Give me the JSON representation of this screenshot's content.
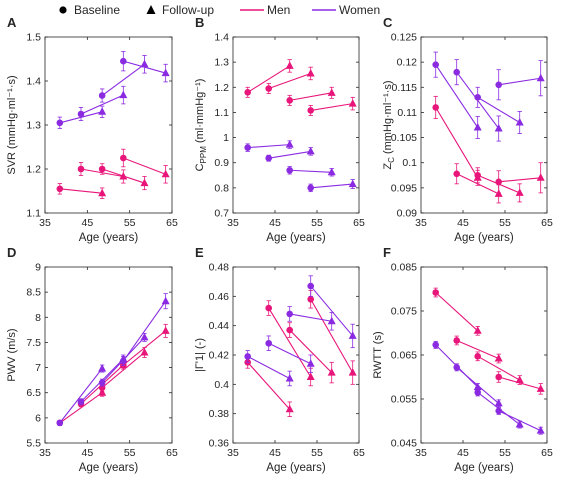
{
  "legend": {
    "items": [
      {
        "label": "Baseline",
        "marker": "circle",
        "color": "#000000"
      },
      {
        "label": "Follow-up",
        "marker": "triangle",
        "color": "#000000"
      },
      {
        "label": "Men",
        "line": true,
        "color": "#E8157A"
      },
      {
        "label": "Women",
        "line": true,
        "color": "#8A2BE2"
      }
    ]
  },
  "colors": {
    "men": "#E8157A",
    "women": "#8A2BE2",
    "axis": "#262626"
  },
  "chart_data": [
    {
      "panel": "A",
      "type": "line",
      "xlabel": "Age (years)",
      "ylabel": "SVR (mmHg·ml⁻¹·s)",
      "xlim": [
        35,
        65
      ],
      "ylim": [
        1.1,
        1.5
      ],
      "xticks": [
        35,
        45,
        55,
        65
      ],
      "xtick_labels": [
        "35",
        "45",
        "55",
        "65"
      ],
      "yticks": [
        1.1,
        1.2,
        1.3,
        1.4,
        1.5
      ],
      "ytick_labels": [
        "1.1",
        "1.2",
        "1.3",
        "1.4",
        "1.5"
      ],
      "series": [
        {
          "sex": "men",
          "segments": [
            {
              "x": [
                38.5,
                48.5
              ],
              "y": [
                1.155,
                1.145
              ],
              "e": [
                0.012,
                0.012
              ]
            },
            {
              "x": [
                43.5,
                53.5
              ],
              "y": [
                1.2,
                1.183
              ],
              "e": [
                0.015,
                0.015
              ]
            },
            {
              "x": [
                48.5,
                58.5
              ],
              "y": [
                1.2,
                1.168
              ],
              "e": [
                0.012,
                0.015
              ]
            },
            {
              "x": [
                53.5,
                63.5
              ],
              "y": [
                1.225,
                1.188
              ],
              "e": [
                0.02,
                0.02
              ]
            }
          ]
        },
        {
          "sex": "women",
          "segments": [
            {
              "x": [
                38.5,
                48.5
              ],
              "y": [
                1.305,
                1.33
              ],
              "e": [
                0.013,
                0.013
              ]
            },
            {
              "x": [
                43.5,
                53.5
              ],
              "y": [
                1.325,
                1.368
              ],
              "e": [
                0.015,
                0.02
              ]
            },
            {
              "x": [
                48.5,
                58.5
              ],
              "y": [
                1.367,
                1.438
              ],
              "e": [
                0.015,
                0.02
              ]
            },
            {
              "x": [
                53.5,
                63.5
              ],
              "y": [
                1.445,
                1.418
              ],
              "e": [
                0.022,
                0.02
              ]
            }
          ]
        }
      ]
    },
    {
      "panel": "B",
      "type": "line",
      "xlabel": "Age (years)",
      "ylabel": "C_PPM (ml·mmHg⁻¹)",
      "xlim": [
        35,
        65
      ],
      "ylim": [
        0.7,
        1.4
      ],
      "xticks": [
        35,
        45,
        55,
        65
      ],
      "xtick_labels": [
        "35",
        "45",
        "55",
        "65"
      ],
      "yticks": [
        0.7,
        0.8,
        0.9,
        1.0,
        1.1,
        1.2,
        1.3,
        1.4
      ],
      "ytick_labels": [
        "0.7",
        "0.8",
        "0.9",
        "1",
        "1.1",
        "1.2",
        "1.3",
        "1.4"
      ],
      "series": [
        {
          "sex": "men",
          "segments": [
            {
              "x": [
                38.5,
                48.5
              ],
              "y": [
                1.18,
                1.285
              ],
              "e": [
                0.02,
                0.025
              ]
            },
            {
              "x": [
                43.5,
                53.5
              ],
              "y": [
                1.195,
                1.255
              ],
              "e": [
                0.02,
                0.025
              ]
            },
            {
              "x": [
                48.5,
                58.5
              ],
              "y": [
                1.148,
                1.178
              ],
              "e": [
                0.02,
                0.022
              ]
            },
            {
              "x": [
                53.5,
                63.5
              ],
              "y": [
                1.108,
                1.135
              ],
              "e": [
                0.02,
                0.025
              ]
            }
          ]
        },
        {
          "sex": "women",
          "segments": [
            {
              "x": [
                38.5,
                48.5
              ],
              "y": [
                0.96,
                0.972
              ],
              "e": [
                0.015,
                0.015
              ]
            },
            {
              "x": [
                43.5,
                53.5
              ],
              "y": [
                0.918,
                0.945
              ],
              "e": [
                0.012,
                0.015
              ]
            },
            {
              "x": [
                48.5,
                58.5
              ],
              "y": [
                0.87,
                0.862
              ],
              "e": [
                0.015,
                0.015
              ]
            },
            {
              "x": [
                53.5,
                63.5
              ],
              "y": [
                0.8,
                0.815
              ],
              "e": [
                0.015,
                0.018
              ]
            }
          ]
        }
      ]
    },
    {
      "panel": "C",
      "type": "line",
      "xlabel": "Age (years)",
      "ylabel": "Z_C (mmHg·ml⁻¹·s)",
      "xlim": [
        35,
        65
      ],
      "ylim": [
        0.09,
        0.125
      ],
      "xticks": [
        35,
        45,
        55,
        65
      ],
      "xtick_labels": [
        "35",
        "45",
        "55",
        "65"
      ],
      "yticks": [
        0.09,
        0.095,
        0.1,
        0.105,
        0.11,
        0.115,
        0.12,
        0.125
      ],
      "ytick_labels": [
        "0.09",
        "0.095",
        "0.1",
        "0.105",
        "0.11",
        "0.115",
        "0.12",
        "0.125"
      ],
      "series": [
        {
          "sex": "men",
          "segments": [
            {
              "x": [
                38.5,
                48.5
              ],
              "y": [
                0.111,
                0.097
              ],
              "e": [
                0.0022,
                0.0015
              ]
            },
            {
              "x": [
                43.5,
                53.5
              ],
              "y": [
                0.0978,
                0.0938
              ],
              "e": [
                0.002,
                0.0018
              ]
            },
            {
              "x": [
                48.5,
                58.5
              ],
              "y": [
                0.0975,
                0.094
              ],
              "e": [
                0.0015,
                0.0018
              ]
            },
            {
              "x": [
                53.5,
                63.5
              ],
              "y": [
                0.0962,
                0.097
              ],
              "e": [
                0.0022,
                0.003
              ]
            }
          ]
        },
        {
          "sex": "women",
          "segments": [
            {
              "x": [
                38.5,
                48.5
              ],
              "y": [
                0.1195,
                0.107
              ],
              "e": [
                0.0025,
                0.0022
              ]
            },
            {
              "x": [
                43.5,
                53.5
              ],
              "y": [
                0.118,
                0.1068
              ],
              "e": [
                0.0025,
                0.0025
              ]
            },
            {
              "x": [
                48.5,
                58.5
              ],
              "y": [
                0.113,
                0.108
              ],
              "e": [
                0.002,
                0.0022
              ]
            },
            {
              "x": [
                53.5,
                63.5
              ],
              "y": [
                0.1155,
                0.1168
              ],
              "e": [
                0.003,
                0.0035
              ]
            }
          ]
        }
      ]
    },
    {
      "panel": "D",
      "type": "line",
      "xlabel": "Age (years)",
      "ylabel": "PWV (m/s)",
      "xlim": [
        35,
        65
      ],
      "ylim": [
        5.5,
        9
      ],
      "xticks": [
        35,
        45,
        55,
        65
      ],
      "xtick_labels": [
        "35",
        "45",
        "55",
        "65"
      ],
      "yticks": [
        5.5,
        6,
        6.5,
        7,
        7.5,
        8,
        8.5,
        9
      ],
      "ytick_labels": [
        "5.5",
        "6",
        "6.5",
        "7",
        "7.5",
        "8",
        "8.5",
        "9"
      ],
      "series": [
        {
          "sex": "men",
          "segments": [
            {
              "x": [
                38.5,
                48.5
              ],
              "y": [
                5.9,
                6.5
              ],
              "e": [
                0.05,
                0.07
              ]
            },
            {
              "x": [
                43.5,
                53.5
              ],
              "y": [
                6.28,
                7.05
              ],
              "e": [
                0.06,
                0.08
              ]
            },
            {
              "x": [
                48.5,
                58.5
              ],
              "y": [
                6.6,
                7.3
              ],
              "e": [
                0.07,
                0.1
              ]
            },
            {
              "x": [
                53.5,
                63.5
              ],
              "y": [
                7.05,
                7.73
              ],
              "e": [
                0.08,
                0.13
              ]
            }
          ]
        },
        {
          "sex": "women",
          "segments": [
            {
              "x": [
                38.5,
                48.5
              ],
              "y": [
                5.9,
                6.98
              ],
              "e": [
                0.05,
                0.07
              ]
            },
            {
              "x": [
                43.5,
                53.5
              ],
              "y": [
                6.32,
                7.17
              ],
              "e": [
                0.06,
                0.08
              ]
            },
            {
              "x": [
                48.5,
                58.5
              ],
              "y": [
                6.7,
                7.6
              ],
              "e": [
                0.07,
                0.08
              ]
            },
            {
              "x": [
                53.5,
                63.5
              ],
              "y": [
                7.13,
                8.32
              ],
              "e": [
                0.09,
                0.15
              ]
            }
          ]
        }
      ]
    },
    {
      "panel": "E",
      "type": "line",
      "xlabel": "Age (years)",
      "ylabel": "|Γ'1| (-)",
      "xlim": [
        35,
        65
      ],
      "ylim": [
        0.36,
        0.48
      ],
      "xticks": [
        35,
        45,
        55,
        65
      ],
      "xtick_labels": [
        "35",
        "45",
        "55",
        "65"
      ],
      "yticks": [
        0.36,
        0.38,
        0.4,
        0.42,
        0.44,
        0.46,
        0.48
      ],
      "ytick_labels": [
        "0.36",
        "0.38",
        "0.4",
        "0.42",
        "0.44",
        "0.46",
        "0.48"
      ],
      "series": [
        {
          "sex": "men",
          "segments": [
            {
              "x": [
                38.5,
                48.5
              ],
              "y": [
                0.415,
                0.383
              ],
              "e": [
                0.004,
                0.005
              ]
            },
            {
              "x": [
                43.5,
                53.5
              ],
              "y": [
                0.452,
                0.405
              ],
              "e": [
                0.005,
                0.006
              ]
            },
            {
              "x": [
                48.5,
                58.5
              ],
              "y": [
                0.437,
                0.408
              ],
              "e": [
                0.005,
                0.007
              ]
            },
            {
              "x": [
                53.5,
                63.5
              ],
              "y": [
                0.458,
                0.408
              ],
              "e": [
                0.006,
                0.008
              ]
            }
          ]
        },
        {
          "sex": "women",
          "segments": [
            {
              "x": [
                38.5,
                48.5
              ],
              "y": [
                0.419,
                0.404
              ],
              "e": [
                0.004,
                0.005
              ]
            },
            {
              "x": [
                43.5,
                53.5
              ],
              "y": [
                0.428,
                0.414
              ],
              "e": [
                0.005,
                0.006
              ]
            },
            {
              "x": [
                48.5,
                58.5
              ],
              "y": [
                0.448,
                0.443
              ],
              "e": [
                0.005,
                0.006
              ]
            },
            {
              "x": [
                53.5,
                63.5
              ],
              "y": [
                0.467,
                0.433
              ],
              "e": [
                0.007,
                0.008
              ]
            }
          ]
        }
      ]
    },
    {
      "panel": "F",
      "type": "line",
      "xlabel": "Age (years)",
      "ylabel": "RWTT (s)",
      "xlim": [
        35,
        65
      ],
      "ylim": [
        0.045,
        0.085
      ],
      "xticks": [
        35,
        45,
        55,
        65
      ],
      "xtick_labels": [
        "35",
        "45",
        "55",
        "65"
      ],
      "yticks": [
        0.045,
        0.055,
        0.065,
        0.075,
        0.085
      ],
      "ytick_labels": [
        "0.045",
        "0.055",
        "0.065",
        "0.075",
        "0.085"
      ],
      "series": [
        {
          "sex": "men",
          "segments": [
            {
              "x": [
                38.5,
                48.5
              ],
              "y": [
                0.0792,
                0.0705
              ],
              "e": [
                0.001,
                0.001
              ]
            },
            {
              "x": [
                43.5,
                53.5
              ],
              "y": [
                0.0683,
                0.0642
              ],
              "e": [
                0.001,
                0.001
              ]
            },
            {
              "x": [
                48.5,
                58.5
              ],
              "y": [
                0.0647,
                0.0593
              ],
              "e": [
                0.001,
                0.001
              ]
            },
            {
              "x": [
                53.5,
                63.5
              ],
              "y": [
                0.06,
                0.0573
              ],
              "e": [
                0.0012,
                0.0012
              ]
            }
          ]
        },
        {
          "sex": "women",
          "segments": [
            {
              "x": [
                38.5,
                48.5
              ],
              "y": [
                0.0673,
                0.0577
              ],
              "e": [
                0.0008,
                0.0008
              ]
            },
            {
              "x": [
                43.5,
                53.5
              ],
              "y": [
                0.0622,
                0.054
              ],
              "e": [
                0.0008,
                0.0008
              ]
            },
            {
              "x": [
                48.5,
                58.5
              ],
              "y": [
                0.0565,
                0.0492
              ],
              "e": [
                0.0008,
                0.0008
              ]
            },
            {
              "x": [
                53.5,
                63.5
              ],
              "y": [
                0.0523,
                0.0478
              ],
              "e": [
                0.0008,
                0.0008
              ]
            }
          ]
        }
      ]
    }
  ]
}
